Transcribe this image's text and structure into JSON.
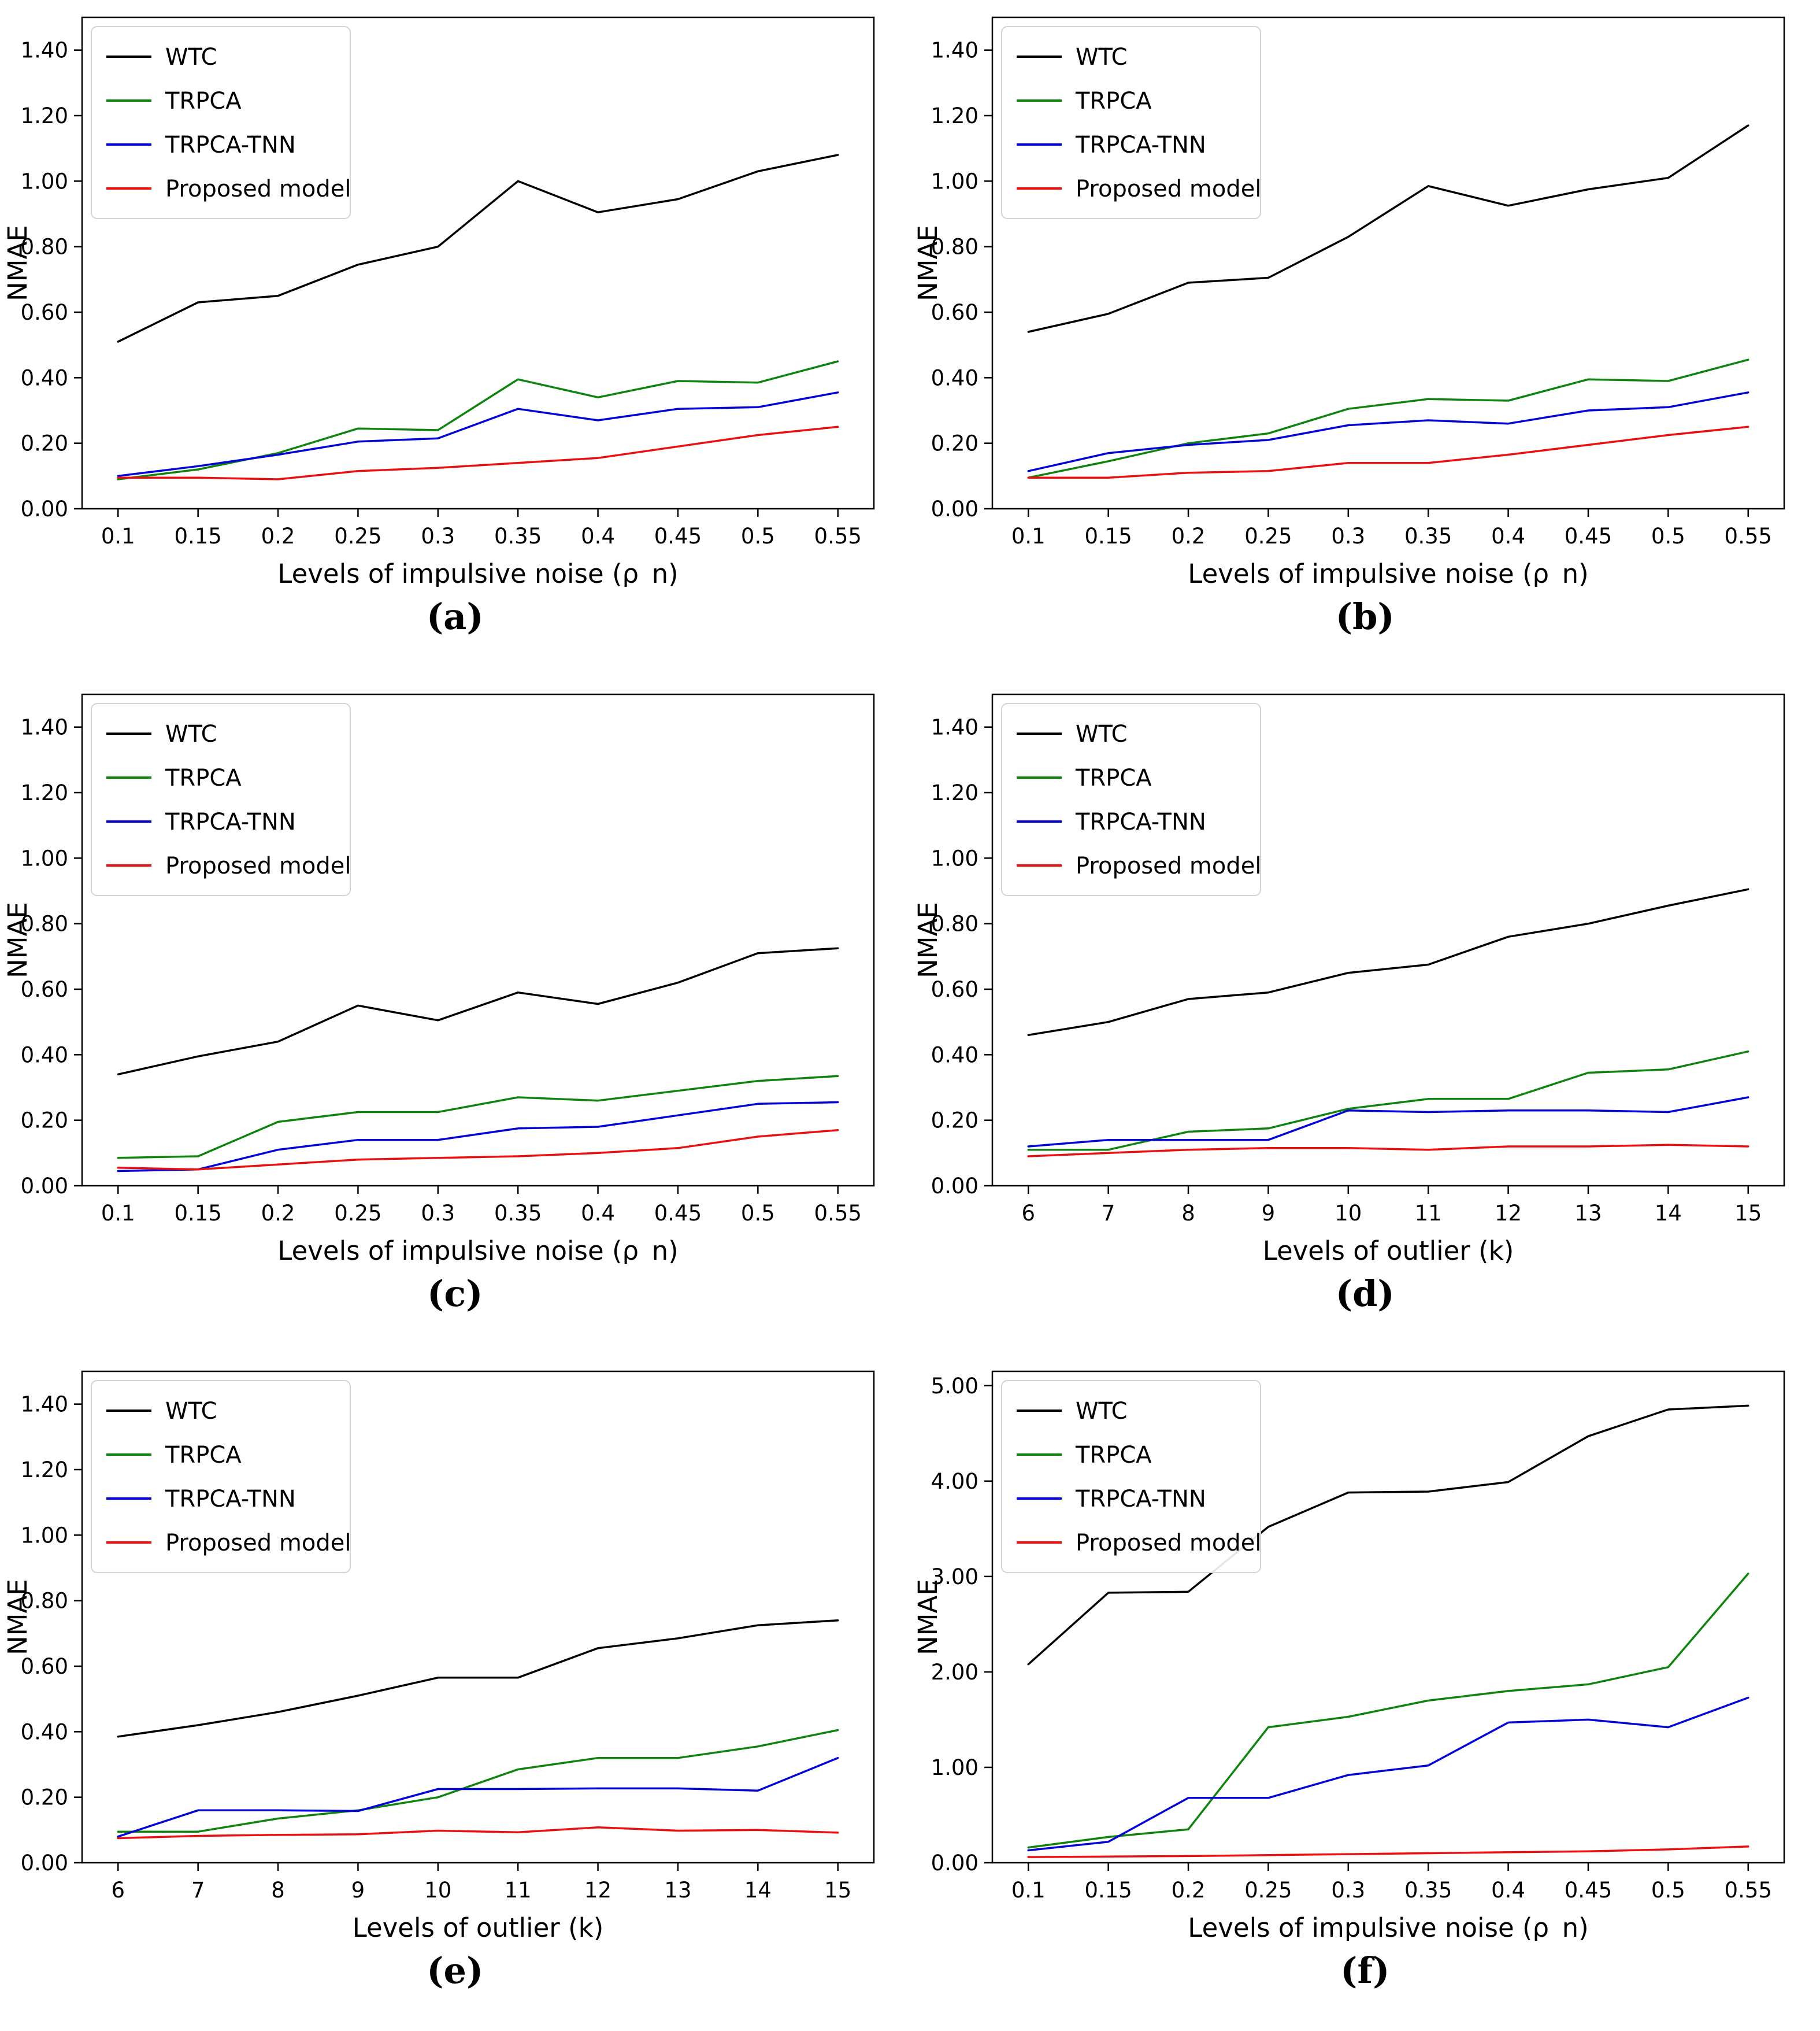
{
  "figure": {
    "ylabel": "NMAE",
    "legend_entries": [
      "WTC",
      "TRPCA",
      "TRPCA-TNN",
      "Proposed model"
    ],
    "colors": {
      "wtc": "#000000",
      "trpca": "#0e830e",
      "trpca_tnn": "#0404d6",
      "proposed": "#e81010"
    },
    "background": "#ffffff"
  },
  "chart_data": [
    {
      "id": "a",
      "caption": "(a)",
      "type": "line",
      "xlabel": "Levels of impulsive noise (ρ_n)",
      "ylabel": "NMAE",
      "x": [
        0.1,
        0.15,
        0.2,
        0.25,
        0.3,
        0.35,
        0.4,
        0.45,
        0.5,
        0.55
      ],
      "xtick_labels": [
        "0.1",
        "0.15",
        "0.2",
        "0.25",
        "0.3",
        "0.35",
        "0.4",
        "0.45",
        "0.5",
        "0.55"
      ],
      "ylim": [
        0,
        1.5
      ],
      "yticks": [
        0.0,
        0.2,
        0.4,
        0.6,
        0.8,
        1.0,
        1.2,
        1.4
      ],
      "ytick_labels": [
        "0.00",
        "0.20",
        "0.40",
        "0.60",
        "0.80",
        "1.00",
        "1.20",
        "1.40"
      ],
      "grid": false,
      "legend_position": "upper left",
      "series": [
        {
          "name": "WTC",
          "color": "#000000",
          "values": [
            0.51,
            0.63,
            0.65,
            0.745,
            0.8,
            1.0,
            0.905,
            0.945,
            1.03,
            1.08
          ]
        },
        {
          "name": "TRPCA",
          "color": "#0e830e",
          "values": [
            0.09,
            0.12,
            0.17,
            0.245,
            0.24,
            0.395,
            0.34,
            0.39,
            0.385,
            0.45
          ]
        },
        {
          "name": "TRPCA-TNN",
          "color": "#0404d6",
          "values": [
            0.1,
            0.13,
            0.165,
            0.205,
            0.215,
            0.305,
            0.27,
            0.305,
            0.31,
            0.355
          ]
        },
        {
          "name": "Proposed model",
          "color": "#e81010",
          "values": [
            0.095,
            0.095,
            0.09,
            0.115,
            0.125,
            0.14,
            0.155,
            0.19,
            0.225,
            0.25
          ]
        }
      ]
    },
    {
      "id": "b",
      "caption": "(b)",
      "type": "line",
      "xlabel": "Levels of impulsive noise (ρ_n)",
      "ylabel": "NMAE",
      "x": [
        0.1,
        0.15,
        0.2,
        0.25,
        0.3,
        0.35,
        0.4,
        0.45,
        0.5,
        0.55
      ],
      "xtick_labels": [
        "0.1",
        "0.15",
        "0.2",
        "0.25",
        "0.3",
        "0.35",
        "0.4",
        "0.45",
        "0.5",
        "0.55"
      ],
      "ylim": [
        0,
        1.5
      ],
      "yticks": [
        0.0,
        0.2,
        0.4,
        0.6,
        0.8,
        1.0,
        1.2,
        1.4
      ],
      "ytick_labels": [
        "0.00",
        "0.20",
        "0.40",
        "0.60",
        "0.80",
        "1.00",
        "1.20",
        "1.40"
      ],
      "grid": false,
      "legend_position": "upper left",
      "series": [
        {
          "name": "WTC",
          "color": "#000000",
          "values": [
            0.54,
            0.595,
            0.69,
            0.705,
            0.83,
            0.985,
            0.925,
            0.975,
            1.01,
            1.17
          ]
        },
        {
          "name": "TRPCA",
          "color": "#0e830e",
          "values": [
            0.095,
            0.145,
            0.2,
            0.23,
            0.305,
            0.335,
            0.33,
            0.395,
            0.39,
            0.455
          ]
        },
        {
          "name": "TRPCA-TNN",
          "color": "#0404d6",
          "values": [
            0.115,
            0.17,
            0.195,
            0.21,
            0.255,
            0.27,
            0.26,
            0.3,
            0.31,
            0.355
          ]
        },
        {
          "name": "Proposed model",
          "color": "#e81010",
          "values": [
            0.095,
            0.095,
            0.11,
            0.115,
            0.14,
            0.14,
            0.165,
            0.195,
            0.225,
            0.25
          ]
        }
      ]
    },
    {
      "id": "c",
      "caption": "(c)",
      "type": "line",
      "xlabel": "Levels of impulsive noise (ρ_n)",
      "ylabel": "NMAE",
      "x": [
        0.1,
        0.15,
        0.2,
        0.25,
        0.3,
        0.35,
        0.4,
        0.45,
        0.5,
        0.55
      ],
      "xtick_labels": [
        "0.1",
        "0.15",
        "0.2",
        "0.25",
        "0.3",
        "0.35",
        "0.4",
        "0.45",
        "0.5",
        "0.55"
      ],
      "ylim": [
        0,
        1.5
      ],
      "yticks": [
        0.0,
        0.2,
        0.4,
        0.6,
        0.8,
        1.0,
        1.2,
        1.4
      ],
      "ytick_labels": [
        "0.00",
        "0.20",
        "0.40",
        "0.60",
        "0.80",
        "1.00",
        "1.20",
        "1.40"
      ],
      "grid": false,
      "legend_position": "upper left",
      "series": [
        {
          "name": "WTC",
          "color": "#000000",
          "values": [
            0.34,
            0.395,
            0.44,
            0.55,
            0.505,
            0.59,
            0.555,
            0.62,
            0.71,
            0.725
          ]
        },
        {
          "name": "TRPCA",
          "color": "#0e830e",
          "values": [
            0.085,
            0.09,
            0.195,
            0.225,
            0.225,
            0.27,
            0.26,
            0.29,
            0.32,
            0.335
          ]
        },
        {
          "name": "TRPCA-TNN",
          "color": "#0404d6",
          "values": [
            0.045,
            0.05,
            0.11,
            0.14,
            0.14,
            0.175,
            0.18,
            0.215,
            0.25,
            0.255
          ]
        },
        {
          "name": "Proposed model",
          "color": "#e81010",
          "values": [
            0.055,
            0.05,
            0.065,
            0.08,
            0.085,
            0.09,
            0.1,
            0.115,
            0.15,
            0.17
          ]
        }
      ]
    },
    {
      "id": "d",
      "caption": "(d)",
      "type": "line",
      "xlabel": "Levels of outlier (k)",
      "ylabel": "NMAE",
      "x": [
        6,
        7,
        8,
        9,
        10,
        11,
        12,
        13,
        14,
        15
      ],
      "xtick_labels": [
        "6",
        "7",
        "8",
        "9",
        "10",
        "11",
        "12",
        "13",
        "14",
        "15"
      ],
      "ylim": [
        0,
        1.5
      ],
      "yticks": [
        0.0,
        0.2,
        0.4,
        0.6,
        0.8,
        1.0,
        1.2,
        1.4
      ],
      "ytick_labels": [
        "0.00",
        "0.20",
        "0.40",
        "0.60",
        "0.80",
        "1.00",
        "1.20",
        "1.40"
      ],
      "grid": false,
      "legend_position": "upper left",
      "series": [
        {
          "name": "WTC",
          "color": "#000000",
          "values": [
            0.46,
            0.5,
            0.57,
            0.59,
            0.65,
            0.675,
            0.76,
            0.8,
            0.855,
            0.905
          ]
        },
        {
          "name": "TRPCA",
          "color": "#0e830e",
          "values": [
            0.11,
            0.11,
            0.165,
            0.175,
            0.235,
            0.265,
            0.265,
            0.345,
            0.355,
            0.41
          ]
        },
        {
          "name": "TRPCA-TNN",
          "color": "#0404d6",
          "values": [
            0.12,
            0.14,
            0.14,
            0.14,
            0.23,
            0.225,
            0.23,
            0.23,
            0.225,
            0.27
          ]
        },
        {
          "name": "Proposed model",
          "color": "#e81010",
          "values": [
            0.09,
            0.1,
            0.11,
            0.115,
            0.115,
            0.11,
            0.12,
            0.12,
            0.125,
            0.12
          ]
        }
      ]
    },
    {
      "id": "e",
      "caption": "(e)",
      "type": "line",
      "xlabel": "Levels of outlier (k)",
      "ylabel": "NMAE",
      "x": [
        6,
        7,
        8,
        9,
        10,
        11,
        12,
        13,
        14,
        15
      ],
      "xtick_labels": [
        "6",
        "7",
        "8",
        "9",
        "10",
        "11",
        "12",
        "13",
        "14",
        "15"
      ],
      "ylim": [
        0,
        1.5
      ],
      "yticks": [
        0.0,
        0.2,
        0.4,
        0.6,
        0.8,
        1.0,
        1.2,
        1.4
      ],
      "ytick_labels": [
        "0.00",
        "0.20",
        "0.40",
        "0.60",
        "0.80",
        "1.00",
        "1.20",
        "1.40"
      ],
      "grid": false,
      "legend_position": "upper left",
      "series": [
        {
          "name": "WTC",
          "color": "#000000",
          "values": [
            0.385,
            0.42,
            0.46,
            0.51,
            0.565,
            0.565,
            0.655,
            0.685,
            0.725,
            0.74
          ]
        },
        {
          "name": "TRPCA",
          "color": "#0e830e",
          "values": [
            0.095,
            0.095,
            0.135,
            0.16,
            0.2,
            0.285,
            0.32,
            0.32,
            0.355,
            0.405
          ]
        },
        {
          "name": "TRPCA-TNN",
          "color": "#0404d6",
          "values": [
            0.08,
            0.16,
            0.16,
            0.158,
            0.225,
            0.225,
            0.227,
            0.227,
            0.22,
            0.32
          ]
        },
        {
          "name": "Proposed model",
          "color": "#e81010",
          "values": [
            0.075,
            0.082,
            0.085,
            0.087,
            0.098,
            0.093,
            0.108,
            0.098,
            0.1,
            0.092
          ]
        }
      ]
    },
    {
      "id": "f",
      "caption": "(f)",
      "type": "line",
      "xlabel": "Levels of impulsive noise (ρ_n)",
      "ylabel": "NMAE",
      "x": [
        0.1,
        0.15,
        0.2,
        0.25,
        0.3,
        0.35,
        0.4,
        0.45,
        0.5,
        0.55
      ],
      "xtick_labels": [
        "0.1",
        "0.15",
        "0.2",
        "0.25",
        "0.3",
        "0.35",
        "0.4",
        "0.45",
        "0.5",
        "0.55"
      ],
      "ylim": [
        0,
        5.15
      ],
      "yticks": [
        0.0,
        1.0,
        2.0,
        3.0,
        4.0,
        5.0
      ],
      "ytick_labels": [
        "0.00",
        "1.00",
        "2.00",
        "3.00",
        "4.00",
        "5.00"
      ],
      "grid": false,
      "legend_position": "upper left",
      "series": [
        {
          "name": "WTC",
          "color": "#000000",
          "values": [
            2.08,
            2.83,
            2.84,
            3.52,
            3.88,
            3.89,
            3.99,
            4.47,
            4.75,
            4.79
          ]
        },
        {
          "name": "TRPCA",
          "color": "#0e830e",
          "values": [
            0.16,
            0.27,
            0.35,
            1.42,
            1.53,
            1.7,
            1.8,
            1.87,
            2.05,
            3.03
          ]
        },
        {
          "name": "TRPCA-TNN",
          "color": "#0404d6",
          "values": [
            0.13,
            0.22,
            0.68,
            0.68,
            0.92,
            1.02,
            1.47,
            1.5,
            1.42,
            1.73
          ]
        },
        {
          "name": "Proposed model",
          "color": "#e81010",
          "values": [
            0.06,
            0.065,
            0.07,
            0.08,
            0.09,
            0.1,
            0.11,
            0.12,
            0.14,
            0.17
          ]
        }
      ]
    }
  ]
}
